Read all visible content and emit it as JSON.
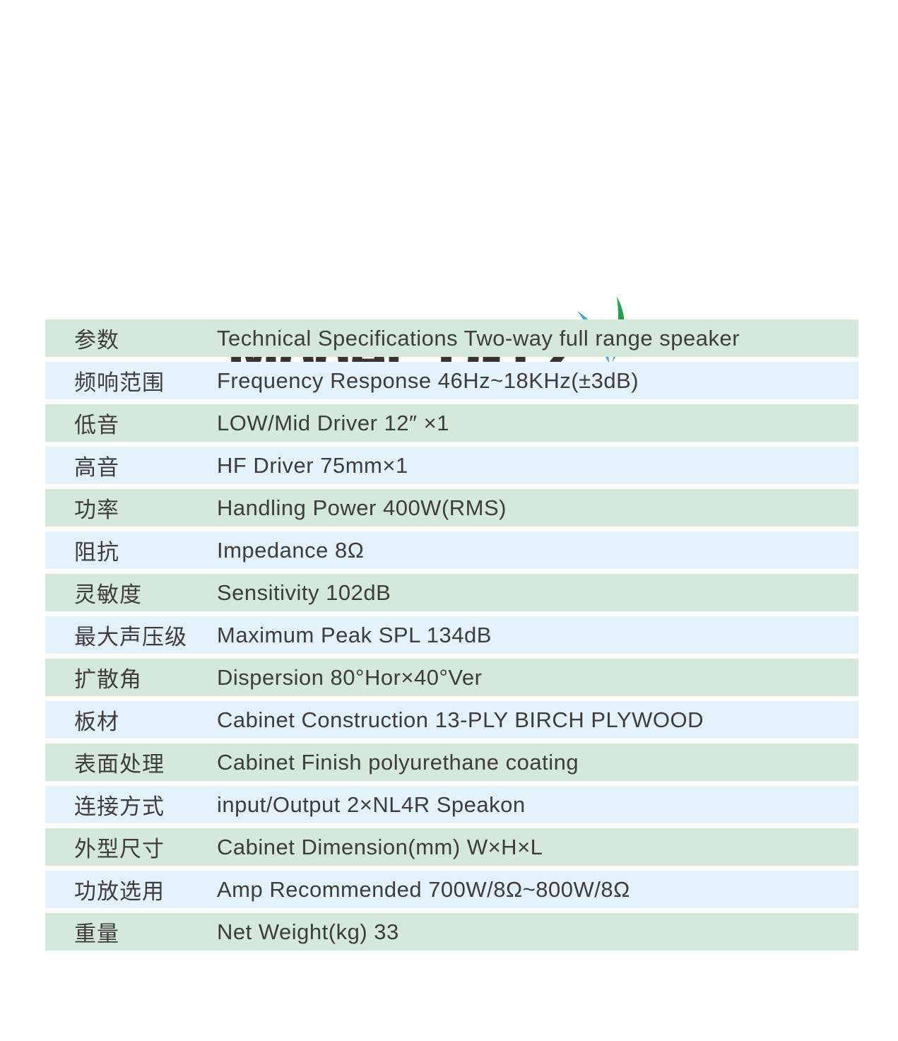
{
  "logo": {
    "text": "Model: D-12",
    "color": "#3a3130",
    "swoosh_green": "#1fa24a",
    "swoosh_blue": "#3aa3de"
  },
  "table": {
    "row_colors": {
      "green": "#d5e9da",
      "blue": "#e3f1fa"
    },
    "text_color": "#3d3d3d",
    "rows": [
      {
        "label": "参数",
        "value": "Technical Specifications Two-way full range speaker",
        "tone": "green"
      },
      {
        "label": "频响范围",
        "value": "Frequency Response 46Hz~18KHz(±3dB)",
        "tone": "blue"
      },
      {
        "label": "低音",
        "value": "LOW/Mid Driver 12″ ×1",
        "tone": "green"
      },
      {
        "label": "高音",
        "value": "HF Driver 75mm×1",
        "tone": "blue"
      },
      {
        "label": "功率",
        "value": "Handling Power 400W(RMS)",
        "tone": "green"
      },
      {
        "label": "阻抗",
        "value": "Impedance 8Ω",
        "tone": "blue"
      },
      {
        "label": "灵敏度",
        "value": "Sensitivity 102dB",
        "tone": "green"
      },
      {
        "label": "最大声压级",
        "value": "Maximum Peak SPL 134dB",
        "tone": "blue"
      },
      {
        "label": "扩散角",
        "value": "Dispersion 80°Hor×40°Ver",
        "tone": "green"
      },
      {
        "label": "板材",
        "value": "Cabinet Construction 13-PLY BIRCH PLYWOOD",
        "tone": "blue"
      },
      {
        "label": "表面处理",
        "value": "Cabinet Finish polyurethane coating",
        "tone": "green"
      },
      {
        "label": "连接方式",
        "value": "input/Output 2×NL4R Speakon",
        "tone": "blue"
      },
      {
        "label": "外型尺寸",
        "value": "Cabinet Dimension(mm) W×H×L",
        "tone": "green"
      },
      {
        "label": "功放选用",
        "value": "Amp Recommended 700W/8Ω~800W/8Ω",
        "tone": "blue"
      },
      {
        "label": "重量",
        "value": "Net Weight(kg) 33",
        "tone": "green"
      }
    ]
  }
}
